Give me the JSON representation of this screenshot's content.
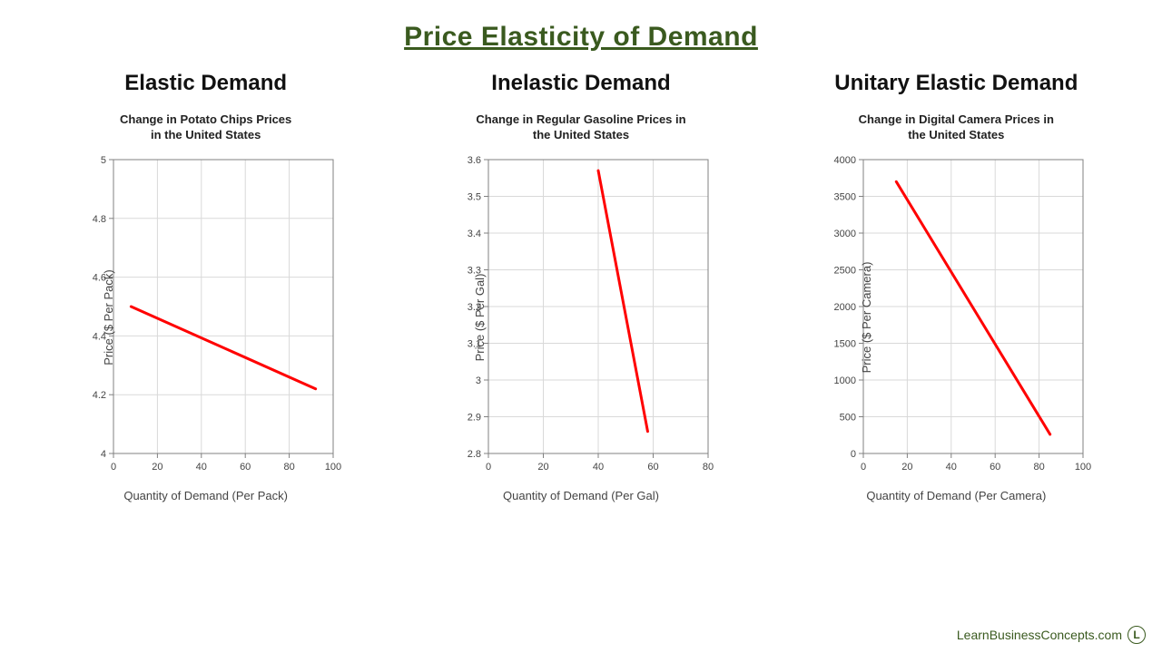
{
  "title": "Price Elasticity of Demand",
  "title_color": "#3a5a1f",
  "background_color": "#ffffff",
  "charts": [
    {
      "section_title": "Elastic Demand",
      "chart_title": "Change in Potato Chips Prices\nin the United States",
      "type": "line",
      "ylabel": "Price ($ Per Pack)",
      "xlabel": "Quantity of Demand (Per Pack)",
      "xlim": [
        0,
        100
      ],
      "ylim": [
        4,
        5
      ],
      "xticks": [
        0,
        20,
        40,
        60,
        80,
        100
      ],
      "yticks": [
        4,
        4.2,
        4.4,
        4.6,
        4.8,
        5
      ],
      "ytick_labels": [
        "4",
        "4.2",
        "4.4",
        "4.6",
        "4.8",
        "5"
      ],
      "line_points": [
        [
          8,
          4.5
        ],
        [
          92,
          4.22
        ]
      ],
      "line_color": "#ff0000",
      "line_width": 3,
      "grid_color": "#d9d9d9",
      "axis_color": "#808080",
      "tick_fontsize": 11,
      "label_fontsize": 13,
      "title_fontsize": 13
    },
    {
      "section_title": "Inelastic Demand",
      "chart_title": "Change in Regular Gasoline Prices in\nthe United States",
      "type": "line",
      "ylabel": "Price ($ Per Gal)",
      "xlabel": "Quantity of Demand (Per Gal)",
      "xlim": [
        0,
        80
      ],
      "ylim": [
        2.8,
        3.6
      ],
      "xticks": [
        0,
        20,
        40,
        60,
        80
      ],
      "yticks": [
        2.8,
        2.9,
        3.0,
        3.1,
        3.2,
        3.3,
        3.4,
        3.5,
        3.6
      ],
      "ytick_labels": [
        "2.8",
        "2.9",
        "3",
        "3.1",
        "3.2",
        "3.3",
        "3.4",
        "3.5",
        "3.6"
      ],
      "line_points": [
        [
          40,
          3.57
        ],
        [
          58,
          2.86
        ]
      ],
      "line_color": "#ff0000",
      "line_width": 3,
      "grid_color": "#d9d9d9",
      "axis_color": "#808080",
      "tick_fontsize": 11,
      "label_fontsize": 13,
      "title_fontsize": 13
    },
    {
      "section_title": "Unitary Elastic Demand",
      "chart_title": "Change in Digital Camera Prices in\nthe United States",
      "type": "line",
      "ylabel": "Price ($ Per Camera)",
      "xlabel": "Quantity of Demand (Per Camera)",
      "xlim": [
        0,
        100
      ],
      "ylim": [
        0,
        4000
      ],
      "xticks": [
        0,
        20,
        40,
        60,
        80,
        100
      ],
      "yticks": [
        0,
        500,
        1000,
        1500,
        2000,
        2500,
        3000,
        3500,
        4000
      ],
      "ytick_labels": [
        "0",
        "500",
        "1000",
        "1500",
        "2000",
        "2500",
        "3000",
        "3500",
        "4000"
      ],
      "line_points": [
        [
          15,
          3700
        ],
        [
          85,
          260
        ]
      ],
      "line_color": "#ff0000",
      "line_width": 3,
      "grid_color": "#d9d9d9",
      "axis_color": "#808080",
      "tick_fontsize": 11,
      "label_fontsize": 13,
      "title_fontsize": 13
    }
  ],
  "footer_text": "LearnBusinessConcepts.com",
  "footer_logo_letter": "L",
  "footer_color": "#3a5a1f"
}
